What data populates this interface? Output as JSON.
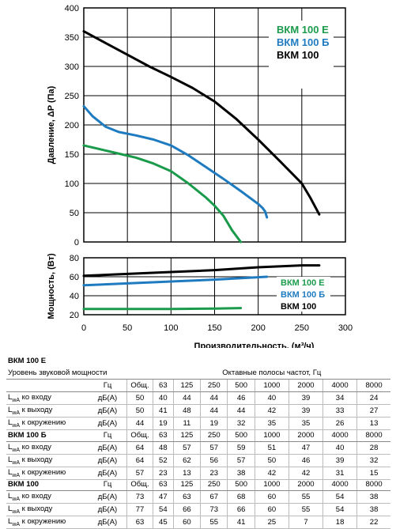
{
  "chart_data": [
    {
      "type": "line",
      "title": "",
      "ylabel": "Давление, ΔP (Па)",
      "xlabel": "",
      "xlim": [
        0,
        300
      ],
      "ylim": [
        0,
        400
      ],
      "x_ticks": [
        0,
        50,
        100,
        150,
        200,
        250,
        300
      ],
      "y_ticks": [
        "0",
        "50",
        "100",
        "150",
        "200",
        "250",
        "300",
        "350",
        "400"
      ],
      "grid": true,
      "legend": "top-right",
      "series": [
        {
          "name": "ВКМ 100 Е",
          "color": "#1a9b4b",
          "x": [
            0,
            20,
            40,
            60,
            80,
            100,
            120,
            140,
            150,
            160,
            170,
            180
          ],
          "y": [
            165,
            158,
            151,
            144,
            134,
            121,
            100,
            76,
            62,
            45,
            20,
            0
          ]
        },
        {
          "name": "ВКМ 100 Б",
          "color": "#1f7bc0",
          "x": [
            0,
            10,
            25,
            40,
            60,
            80,
            100,
            120,
            140,
            160,
            180,
            200,
            205,
            208,
            210
          ],
          "y": [
            232,
            215,
            197,
            188,
            182,
            175,
            165,
            148,
            128,
            108,
            87,
            65,
            58,
            52,
            42
          ]
        },
        {
          "name": "ВКМ 100",
          "color": "#000000",
          "x": [
            0,
            25,
            50,
            75,
            100,
            125,
            150,
            175,
            200,
            225,
            250,
            260,
            270
          ],
          "y": [
            360,
            340,
            320,
            300,
            282,
            263,
            240,
            210,
            175,
            138,
            100,
            75,
            47
          ]
        }
      ]
    },
    {
      "type": "line",
      "title": "",
      "ylabel": "Мощность, (Вт)",
      "xlabel": "Производительность, (м³/ч)",
      "xlim": [
        0,
        300
      ],
      "ylim": [
        20,
        80
      ],
      "x_ticks": [
        "0",
        "50",
        "100",
        "150",
        "200",
        "250",
        "300"
      ],
      "y_ticks": [
        "20",
        "40",
        "60",
        "80"
      ],
      "grid": true,
      "legend": "right",
      "series": [
        {
          "name": "ВКМ 100 Е",
          "color": "#1a9b4b",
          "x": [
            0,
            50,
            100,
            150,
            180
          ],
          "y": [
            26,
            26,
            26,
            26.5,
            27
          ]
        },
        {
          "name": "ВКМ 100 Б",
          "color": "#1f7bc0",
          "x": [
            0,
            50,
            100,
            150,
            210
          ],
          "y": [
            51,
            53,
            55,
            57,
            60
          ]
        },
        {
          "name": "ВКМ 100",
          "color": "#000000",
          "x": [
            0,
            50,
            100,
            150,
            200,
            250,
            270
          ],
          "y": [
            61,
            63,
            65,
            67,
            70,
            72,
            72
          ]
        }
      ]
    }
  ],
  "tables": {
    "col_head": "Гц",
    "col_total": "Общ.",
    "bands": [
      "63",
      "125",
      "250",
      "500",
      "1000",
      "2000",
      "4000",
      "8000"
    ],
    "group_header": "Октавные полосы частот, Гц",
    "sub_title": "Уровень звуковой мощности",
    "unit": "дБ(А)",
    "row_labels": [
      [
        "L",
        "wA",
        " ко входу"
      ],
      [
        "L",
        "wA",
        " к выходу"
      ],
      [
        "L",
        "wA",
        " к окружению"
      ]
    ],
    "groups": [
      {
        "title": "ВКМ 100 Е",
        "rows": [
          [
            "50",
            "40",
            "44",
            "44",
            "46",
            "40",
            "39",
            "34",
            "24"
          ],
          [
            "50",
            "41",
            "48",
            "44",
            "44",
            "42",
            "39",
            "33",
            "27"
          ],
          [
            "44",
            "19",
            "11",
            "19",
            "32",
            "35",
            "35",
            "26",
            "13"
          ]
        ]
      },
      {
        "title": "ВКМ 100 Б",
        "rows": [
          [
            "64",
            "48",
            "57",
            "57",
            "59",
            "51",
            "47",
            "40",
            "28"
          ],
          [
            "64",
            "52",
            "62",
            "56",
            "57",
            "50",
            "46",
            "39",
            "32"
          ],
          [
            "57",
            "23",
            "13",
            "23",
            "38",
            "42",
            "42",
            "31",
            "15"
          ]
        ]
      },
      {
        "title": "ВКМ 100",
        "rows": [
          [
            "73",
            "47",
            "63",
            "67",
            "68",
            "60",
            "55",
            "54",
            "38"
          ],
          [
            "77",
            "54",
            "66",
            "73",
            "66",
            "60",
            "55",
            "54",
            "38"
          ],
          [
            "63",
            "45",
            "60",
            "55",
            "41",
            "25",
            "7",
            "18",
            "22"
          ]
        ]
      }
    ]
  }
}
